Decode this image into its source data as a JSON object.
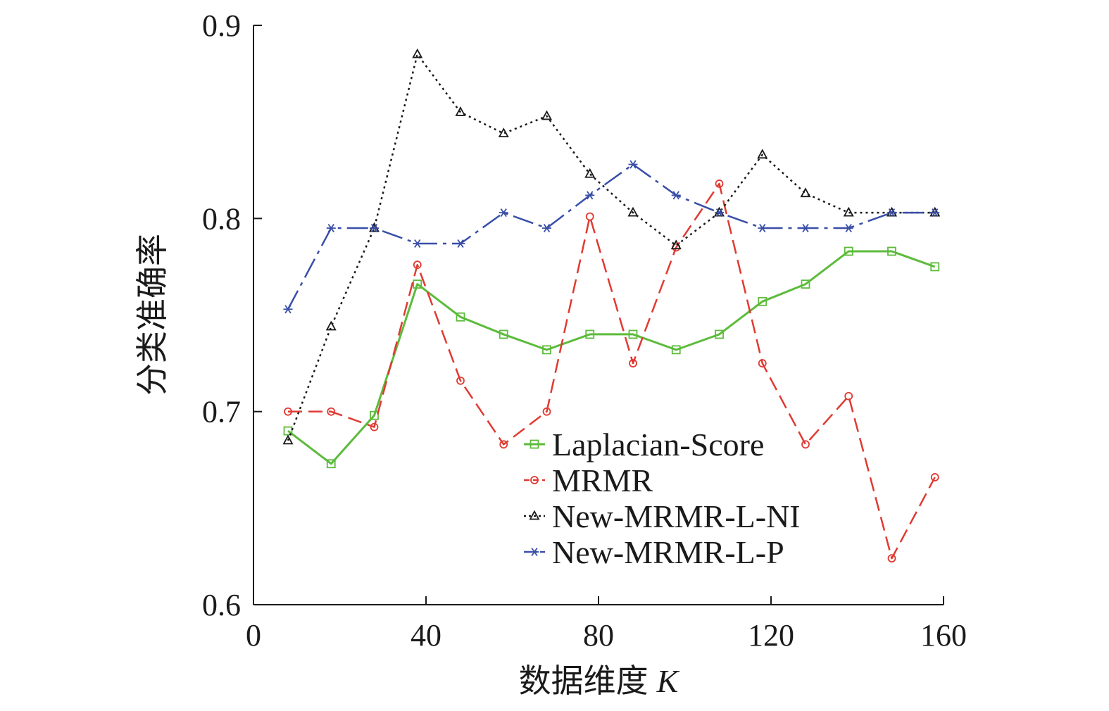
{
  "chart_data": {
    "type": "line",
    "xlabel": "数据维度",
    "xlabel_var": "K",
    "ylabel": "分类准确率",
    "xlim": [
      0,
      160
    ],
    "ylim": [
      0.6,
      0.9
    ],
    "xticks": [
      "0",
      "40",
      "80",
      "120",
      "160"
    ],
    "yticks": [
      "0.6",
      "0.7",
      "0.8",
      "0.9"
    ],
    "grid": false,
    "legend_position": "bottom-right",
    "x": [
      8,
      18,
      28,
      38,
      48,
      58,
      68,
      78,
      88,
      98,
      108,
      118,
      128,
      138,
      148,
      158
    ],
    "series": [
      {
        "name": "Laplacian-Score",
        "color": "#5dbb3c",
        "marker": "square",
        "values": [
          0.69,
          0.673,
          0.698,
          0.766,
          0.749,
          0.74,
          0.732,
          0.74,
          0.74,
          0.732,
          0.74,
          0.757,
          0.766,
          0.783,
          0.783,
          0.775
        ]
      },
      {
        "name": "MRMR",
        "color": "#e03a32",
        "marker": "circle",
        "values": [
          0.7,
          0.7,
          0.692,
          0.776,
          0.716,
          0.683,
          0.7,
          0.801,
          0.725,
          0.785,
          0.818,
          0.725,
          0.683,
          0.708,
          0.624,
          0.666
        ]
      },
      {
        "name": "New-MRMR-L-NI",
        "color": "#1a1a1a",
        "marker": "triangle",
        "values": [
          0.685,
          0.744,
          0.795,
          0.885,
          0.855,
          0.844,
          0.853,
          0.823,
          0.803,
          0.786,
          0.803,
          0.833,
          0.813,
          0.803,
          0.803,
          0.803
        ]
      },
      {
        "name": "New-MRMR-L-P",
        "color": "#3a4fa8",
        "marker": "asterisk",
        "values": [
          0.753,
          0.795,
          0.795,
          0.787,
          0.787,
          0.803,
          0.795,
          0.812,
          0.828,
          0.812,
          0.803,
          0.795,
          0.795,
          0.795,
          0.803,
          0.803
        ]
      }
    ]
  }
}
